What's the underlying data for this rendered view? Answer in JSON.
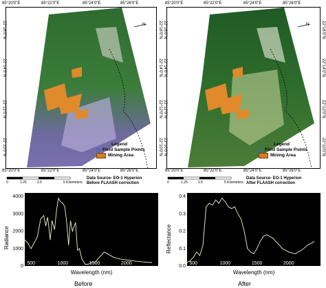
{
  "maps": [
    {
      "id": "before",
      "top_coords": [
        "85°20'0\"E",
        "85°22'0\"E",
        "85°24'0\"E",
        "85°26'0\"E"
      ],
      "bottom_coords": [
        "85°20'0\"E",
        "85°22'0\"E",
        "85°24'0\"E",
        "85°26'0\"E"
      ],
      "left_coords": [
        "22°16'0\"N",
        "22°14'0\"N",
        "22°12'0\"N",
        "22°10'0\"N"
      ],
      "right_coords": [
        "22°16'0\"N",
        "22°14'0\"N",
        "22°12'0\"N",
        "22°10'0\"N"
      ],
      "legend_title": "Legend",
      "legend_items": [
        "Field Sample Points",
        "Mining Area"
      ],
      "source_line1": "Data Source-   EO-1 Hyperion",
      "source_line2": "Before FLAASH correction",
      "scale_labels": [
        "0",
        "1.25",
        "2.5",
        "5 Kilometers"
      ],
      "north": "N"
    },
    {
      "id": "after",
      "top_coords": [
        "85°20'0\"E",
        "85°22'0\"E",
        "85°24'0\"E",
        "85°26'0\"E"
      ],
      "bottom_coords": [
        "85°20'0\"E",
        "85°22'0\"E",
        "85°24'0\"E",
        "85°26'0\"E"
      ],
      "left_coords": [
        "22°16'0\"N",
        "22°14'0\"N",
        "22°12'0\"N",
        "22°10'0\"N"
      ],
      "right_coords": [
        "22°16'0\"N",
        "22°14'0\"N",
        "22°12'0\"N",
        "22°10'0\"N"
      ],
      "legend_title": "Legend",
      "legend_items": [
        "Field Sample Points",
        "Mining Area"
      ],
      "source_line1": "Data Source-   EO-1 Hyperion",
      "source_line2": "After FLAASH correction",
      "scale_labels": [
        "0",
        "1.25",
        "2.5",
        "5 Kilometers"
      ],
      "north": "N"
    }
  ],
  "chart_data": [
    {
      "type": "line",
      "title": "Before",
      "xlabel": "Wavelength (nm)",
      "ylabel": "Radiance",
      "xlim": [
        400,
        2500
      ],
      "ylim": [
        0,
        4200
      ],
      "xticks": [
        "500",
        "1000",
        "1500",
        "2000"
      ],
      "yticks": [
        "0",
        "1000",
        "2000",
        "3000",
        "4000"
      ],
      "x": [
        400,
        450,
        500,
        550,
        600,
        650,
        700,
        730,
        760,
        800,
        830,
        870,
        900,
        930,
        960,
        1000,
        1030,
        1060,
        1090,
        1120,
        1150,
        1200,
        1230,
        1260,
        1300,
        1350,
        1400,
        1450,
        1500,
        1550,
        1600,
        1650,
        1700,
        1800,
        1900,
        2000,
        2100,
        2200,
        2300,
        2400
      ],
      "y": [
        1500,
        1300,
        1000,
        1350,
        1700,
        2700,
        2900,
        2300,
        2800,
        1500,
        2600,
        2100,
        3200,
        3900,
        3700,
        3600,
        3400,
        2500,
        1200,
        2600,
        2000,
        2500,
        900,
        1000,
        400,
        100,
        100,
        200,
        200,
        400,
        600,
        800,
        700,
        500,
        400,
        350,
        300,
        250,
        220,
        200
      ]
    },
    {
      "type": "line",
      "title": "After",
      "xlabel": "Wavelength (nm)",
      "ylabel": "Reflectance",
      "xlim": [
        400,
        2500
      ],
      "ylim": [
        0,
        0.42
      ],
      "xticks": [
        "500",
        "1000",
        "1500",
        "2000"
      ],
      "yticks": [
        "0.0",
        "0.1",
        "0.2",
        "0.3",
        "0.4"
      ],
      "x": [
        400,
        450,
        500,
        550,
        600,
        650,
        700,
        750,
        800,
        850,
        900,
        950,
        1000,
        1050,
        1100,
        1150,
        1200,
        1250,
        1300,
        1350,
        1400,
        1450,
        1500,
        1550,
        1600,
        1650,
        1700,
        1750,
        1800,
        1850,
        1900,
        2000,
        2100,
        2200,
        2300,
        2400
      ],
      "y": [
        0.02,
        0.03,
        0.05,
        0.08,
        0.06,
        0.12,
        0.34,
        0.36,
        0.35,
        0.38,
        0.36,
        0.39,
        0.37,
        0.34,
        0.33,
        0.34,
        0.3,
        0.27,
        0.2,
        0.1,
        0.08,
        0.07,
        0.1,
        0.14,
        0.17,
        0.18,
        0.17,
        0.16,
        0.14,
        0.12,
        0.1,
        0.08,
        0.07,
        0.09,
        0.12,
        0.14
      ]
    }
  ]
}
